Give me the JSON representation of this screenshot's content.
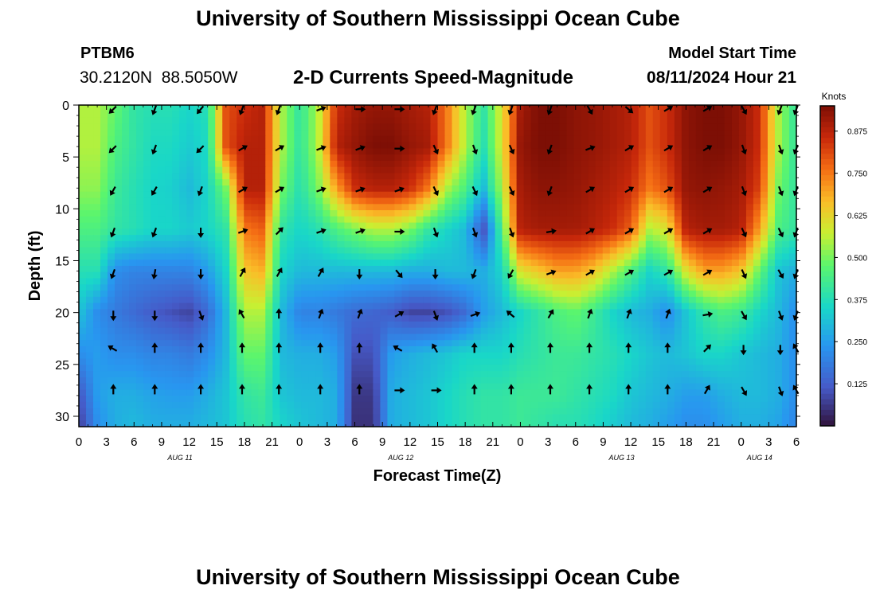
{
  "page": {
    "title": "University of Southern Mississippi Ocean Cube",
    "station_id": "PTBM6",
    "station_coords": "30.2120N  88.5050W",
    "plot_title": "2-D Currents Speed-Magnitude",
    "model_start_label": "Model Start Time",
    "model_start_value": "08/11/2024 Hour 21",
    "bottom_title": "University of Southern Mississippi Ocean Cube"
  },
  "chart_data": {
    "type": "heatmap",
    "xlabel": "Forecast Time(Z)",
    "ylabel": "Depth (ft)",
    "colorbar_label": "Knots",
    "x_range_hours": [
      0,
      78
    ],
    "x_ticks": [
      "0",
      "3",
      "6",
      "9",
      "12",
      "15",
      "18",
      "21",
      "0",
      "3",
      "6",
      "9",
      "12",
      "15",
      "18",
      "21",
      "0",
      "3",
      "6",
      "9",
      "12",
      "15",
      "18",
      "21",
      "0",
      "3",
      "6"
    ],
    "date_labels": [
      {
        "text": "AUG 11",
        "hour": 11
      },
      {
        "text": "AUG 12",
        "hour": 35
      },
      {
        "text": "AUG 13",
        "hour": 59
      },
      {
        "text": "AUG 14",
        "hour": 74
      }
    ],
    "y_range": [
      0,
      31
    ],
    "y_ticks": [
      0,
      5,
      10,
      15,
      20,
      25,
      30
    ],
    "colorbar_range": [
      0.0,
      0.95
    ],
    "colorbar_ticks": [
      "0.125",
      "0.250",
      "0.375",
      "0.500",
      "0.625",
      "0.750",
      "0.875"
    ],
    "grid": false,
    "speed_hours": [
      0,
      2,
      4,
      6,
      8,
      10,
      12,
      14,
      16,
      18,
      20,
      22,
      24,
      26,
      28,
      30,
      32,
      34,
      36,
      38,
      40,
      42,
      44,
      46,
      48,
      50,
      52,
      54,
      56,
      58,
      60,
      62,
      64,
      66,
      68,
      70,
      72,
      74,
      76,
      78
    ],
    "speed_depths": [
      0,
      4,
      8,
      12,
      16,
      20,
      24,
      28,
      31
    ],
    "speed_knots": [
      [
        0.55,
        0.55,
        0.48,
        0.4,
        0.38,
        0.38,
        0.35,
        0.38,
        0.8,
        0.85,
        0.88,
        0.55,
        0.4,
        0.55,
        0.85,
        0.9,
        0.92,
        0.92,
        0.9,
        0.88,
        0.75,
        0.55,
        0.4,
        0.6,
        0.9,
        0.95,
        0.95,
        0.93,
        0.92,
        0.9,
        0.88,
        0.8,
        0.85,
        0.93,
        0.95,
        0.95,
        0.92,
        0.85,
        0.55,
        0.4
      ],
      [
        0.55,
        0.55,
        0.45,
        0.4,
        0.36,
        0.36,
        0.33,
        0.36,
        0.8,
        0.88,
        0.88,
        0.55,
        0.4,
        0.55,
        0.88,
        0.92,
        0.95,
        0.95,
        0.92,
        0.9,
        0.75,
        0.55,
        0.38,
        0.6,
        0.92,
        0.95,
        0.95,
        0.93,
        0.92,
        0.9,
        0.88,
        0.8,
        0.85,
        0.93,
        0.95,
        0.95,
        0.92,
        0.85,
        0.55,
        0.4
      ],
      [
        0.52,
        0.52,
        0.42,
        0.38,
        0.35,
        0.34,
        0.3,
        0.35,
        0.5,
        0.88,
        0.88,
        0.5,
        0.38,
        0.5,
        0.7,
        0.85,
        0.88,
        0.88,
        0.85,
        0.75,
        0.55,
        0.45,
        0.3,
        0.55,
        0.9,
        0.93,
        0.93,
        0.92,
        0.9,
        0.88,
        0.85,
        0.75,
        0.8,
        0.92,
        0.93,
        0.92,
        0.9,
        0.82,
        0.5,
        0.4
      ],
      [
        0.45,
        0.45,
        0.4,
        0.38,
        0.35,
        0.35,
        0.33,
        0.35,
        0.4,
        0.75,
        0.78,
        0.4,
        0.35,
        0.38,
        0.45,
        0.5,
        0.55,
        0.55,
        0.5,
        0.4,
        0.35,
        0.3,
        0.1,
        0.45,
        0.88,
        0.9,
        0.9,
        0.9,
        0.88,
        0.85,
        0.78,
        0.55,
        0.6,
        0.88,
        0.9,
        0.9,
        0.88,
        0.7,
        0.45,
        0.4
      ],
      [
        0.38,
        0.38,
        0.22,
        0.2,
        0.2,
        0.2,
        0.2,
        0.25,
        0.35,
        0.65,
        0.68,
        0.35,
        0.3,
        0.3,
        0.3,
        0.3,
        0.3,
        0.3,
        0.28,
        0.28,
        0.3,
        0.3,
        0.28,
        0.35,
        0.6,
        0.65,
        0.7,
        0.7,
        0.65,
        0.55,
        0.45,
        0.35,
        0.4,
        0.6,
        0.7,
        0.7,
        0.65,
        0.48,
        0.32,
        0.28
      ],
      [
        0.32,
        0.22,
        0.18,
        0.15,
        0.12,
        0.1,
        0.08,
        0.15,
        0.3,
        0.55,
        0.55,
        0.3,
        0.2,
        0.2,
        0.18,
        0.15,
        0.14,
        0.12,
        0.08,
        0.08,
        0.1,
        0.15,
        0.25,
        0.3,
        0.35,
        0.4,
        0.45,
        0.48,
        0.42,
        0.35,
        0.3,
        0.28,
        0.22,
        0.32,
        0.4,
        0.45,
        0.42,
        0.35,
        0.3,
        0.22
      ],
      [
        0.22,
        0.25,
        0.22,
        0.22,
        0.2,
        0.2,
        0.18,
        0.22,
        0.3,
        0.48,
        0.48,
        0.3,
        0.28,
        0.28,
        0.25,
        0.1,
        0.1,
        0.25,
        0.28,
        0.3,
        0.32,
        0.35,
        0.35,
        0.35,
        0.38,
        0.4,
        0.42,
        0.42,
        0.4,
        0.38,
        0.35,
        0.32,
        0.3,
        0.32,
        0.35,
        0.35,
        0.32,
        0.3,
        0.28,
        0.22
      ],
      [
        0.1,
        0.25,
        0.28,
        0.28,
        0.26,
        0.25,
        0.25,
        0.28,
        0.32,
        0.4,
        0.42,
        0.32,
        0.3,
        0.3,
        0.28,
        0.06,
        0.06,
        0.28,
        0.3,
        0.32,
        0.35,
        0.38,
        0.4,
        0.4,
        0.42,
        0.42,
        0.42,
        0.4,
        0.38,
        0.36,
        0.32,
        0.3,
        0.28,
        0.25,
        0.25,
        0.28,
        0.3,
        0.3,
        0.28,
        0.22
      ],
      [
        0.06,
        0.22,
        0.28,
        0.3,
        0.28,
        0.28,
        0.28,
        0.3,
        0.32,
        0.38,
        0.4,
        0.35,
        0.32,
        0.3,
        0.28,
        0.05,
        0.05,
        0.28,
        0.3,
        0.32,
        0.35,
        0.38,
        0.4,
        0.4,
        0.42,
        0.4,
        0.38,
        0.38,
        0.36,
        0.33,
        0.3,
        0.28,
        0.25,
        0.22,
        0.22,
        0.25,
        0.28,
        0.28,
        0.26,
        0.2
      ]
    ],
    "vector_hours": [
      3.75,
      8.25,
      13.25,
      17.75,
      21.75,
      26.25,
      30.5,
      34.75,
      38.75,
      43.0,
      47.0,
      51.25,
      55.5,
      59.75,
      64.0,
      68.25,
      72.25,
      76.25,
      78.0
    ],
    "vector_depths": [
      0.4,
      4.2,
      8.2,
      12.2,
      16.2,
      20.2,
      23.5,
      27.5
    ],
    "vector_directions_deg": [
      [
        225,
        200,
        220,
        200,
        200,
        70,
        90,
        90,
        200,
        200,
        200,
        200,
        150,
        130,
        60,
        60,
        150,
        200,
        200
      ],
      [
        225,
        200,
        225,
        60,
        60,
        70,
        70,
        90,
        155,
        160,
        155,
        200,
        70,
        60,
        60,
        60,
        160,
        160,
        200
      ],
      [
        210,
        210,
        200,
        60,
        60,
        70,
        70,
        70,
        155,
        155,
        155,
        200,
        60,
        60,
        60,
        60,
        160,
        160,
        200
      ],
      [
        200,
        200,
        180,
        70,
        45,
        70,
        70,
        90,
        160,
        160,
        160,
        80,
        60,
        60,
        60,
        60,
        155,
        155,
        200
      ],
      [
        200,
        190,
        180,
        30,
        30,
        30,
        180,
        140,
        180,
        200,
        210,
        70,
        60,
        60,
        60,
        60,
        155,
        150,
        200
      ],
      [
        180,
        180,
        160,
        330,
        0,
        20,
        20,
        60,
        160,
        70,
        310,
        30,
        20,
        20,
        20,
        80,
        150,
        160,
        200
      ],
      [
        300,
        0,
        0,
        0,
        0,
        0,
        0,
        300,
        330,
        0,
        0,
        0,
        0,
        0,
        0,
        45,
        180,
        180,
        330
      ],
      [
        0,
        0,
        0,
        0,
        0,
        0,
        0,
        90,
        90,
        0,
        0,
        0,
        0,
        0,
        0,
        30,
        150,
        160,
        330
      ]
    ]
  }
}
